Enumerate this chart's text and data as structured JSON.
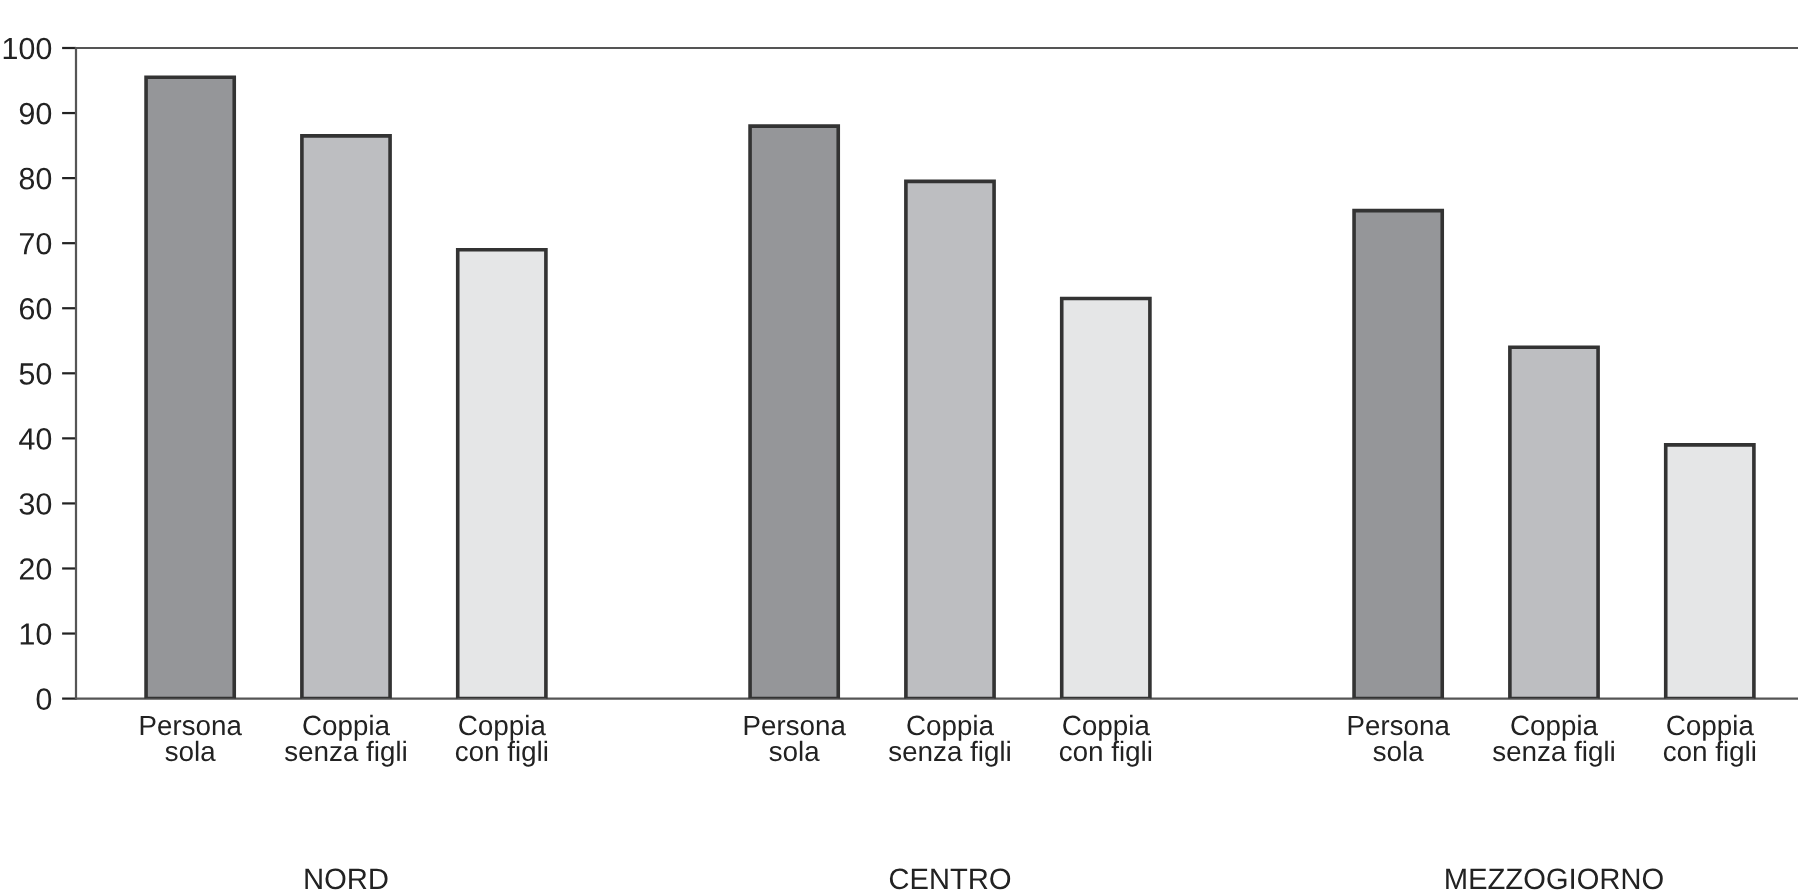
{
  "chart_data": {
    "type": "bar",
    "categories": [
      "NORD",
      "CENTRO",
      "MEZZOGIORNO"
    ],
    "series": [
      {
        "name": "Persona sola",
        "color": "#959699",
        "values": [
          95.5,
          88,
          75
        ]
      },
      {
        "name": "Coppia senza figli",
        "color": "#bdbec1",
        "values": [
          86.5,
          79.5,
          54
        ]
      },
      {
        "name": "Coppia con figli",
        "color": "#e5e6e7",
        "values": [
          69,
          61.5,
          39
        ]
      }
    ],
    "ylim": [
      0,
      100
    ],
    "yticks": [
      0,
      10,
      20,
      30,
      40,
      50,
      60,
      70,
      80,
      90,
      100
    ],
    "grid": false,
    "legend": false
  }
}
